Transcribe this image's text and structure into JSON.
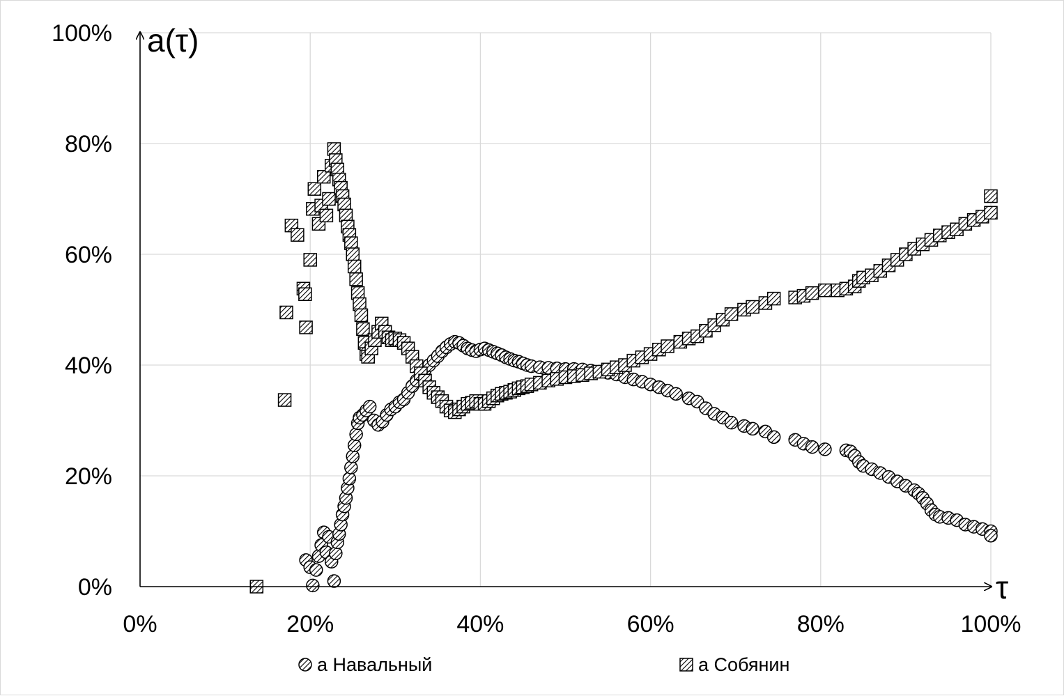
{
  "chart_data": {
    "type": "scatter",
    "title": "",
    "xlabel": "τ",
    "ylabel": "a(τ)",
    "xlim": [
      0,
      1
    ],
    "ylim": [
      0,
      1
    ],
    "x_ticks": [
      "0%",
      "20%",
      "40%",
      "60%",
      "80%",
      "100%"
    ],
    "y_ticks": [
      "0%",
      "20%",
      "40%",
      "60%",
      "80%",
      "100%"
    ],
    "grid": true,
    "legend_position": "bottom",
    "series": [
      {
        "name": "a Навальный",
        "marker": "circle-hatched",
        "points": [
          [
            0.195,
            0.048
          ],
          [
            0.2,
            0.035
          ],
          [
            0.203,
            0.002
          ],
          [
            0.207,
            0.03
          ],
          [
            0.21,
            0.055
          ],
          [
            0.213,
            0.075
          ],
          [
            0.216,
            0.098
          ],
          [
            0.219,
            0.062
          ],
          [
            0.222,
            0.09
          ],
          [
            0.225,
            0.045
          ],
          [
            0.228,
            0.01
          ],
          [
            0.23,
            0.06
          ],
          [
            0.232,
            0.08
          ],
          [
            0.234,
            0.095
          ],
          [
            0.236,
            0.112
          ],
          [
            0.238,
            0.13
          ],
          [
            0.24,
            0.145
          ],
          [
            0.242,
            0.16
          ],
          [
            0.244,
            0.178
          ],
          [
            0.246,
            0.195
          ],
          [
            0.248,
            0.215
          ],
          [
            0.25,
            0.235
          ],
          [
            0.252,
            0.255
          ],
          [
            0.254,
            0.275
          ],
          [
            0.256,
            0.295
          ],
          [
            0.258,
            0.305
          ],
          [
            0.262,
            0.31
          ],
          [
            0.266,
            0.318
          ],
          [
            0.27,
            0.325
          ],
          [
            0.275,
            0.3
          ],
          [
            0.28,
            0.292
          ],
          [
            0.285,
            0.298
          ],
          [
            0.29,
            0.31
          ],
          [
            0.295,
            0.32
          ],
          [
            0.3,
            0.325
          ],
          [
            0.305,
            0.333
          ],
          [
            0.31,
            0.338
          ],
          [
            0.315,
            0.35
          ],
          [
            0.32,
            0.362
          ],
          [
            0.325,
            0.372
          ],
          [
            0.33,
            0.382
          ],
          [
            0.335,
            0.392
          ],
          [
            0.34,
            0.4
          ],
          [
            0.345,
            0.408
          ],
          [
            0.35,
            0.416
          ],
          [
            0.355,
            0.425
          ],
          [
            0.36,
            0.432
          ],
          [
            0.365,
            0.438
          ],
          [
            0.37,
            0.442
          ],
          [
            0.375,
            0.44
          ],
          [
            0.38,
            0.435
          ],
          [
            0.385,
            0.43
          ],
          [
            0.39,
            0.427
          ],
          [
            0.395,
            0.425
          ],
          [
            0.4,
            0.428
          ],
          [
            0.405,
            0.43
          ],
          [
            0.41,
            0.427
          ],
          [
            0.415,
            0.424
          ],
          [
            0.42,
            0.421
          ],
          [
            0.425,
            0.418
          ],
          [
            0.43,
            0.414
          ],
          [
            0.435,
            0.411
          ],
          [
            0.44,
            0.408
          ],
          [
            0.445,
            0.406
          ],
          [
            0.45,
            0.403
          ],
          [
            0.455,
            0.4
          ],
          [
            0.46,
            0.398
          ],
          [
            0.47,
            0.396
          ],
          [
            0.48,
            0.395
          ],
          [
            0.49,
            0.394
          ],
          [
            0.5,
            0.393
          ],
          [
            0.51,
            0.393
          ],
          [
            0.52,
            0.392
          ],
          [
            0.53,
            0.39
          ],
          [
            0.54,
            0.388
          ],
          [
            0.55,
            0.386
          ],
          [
            0.56,
            0.383
          ],
          [
            0.57,
            0.378
          ],
          [
            0.58,
            0.374
          ],
          [
            0.59,
            0.37
          ],
          [
            0.6,
            0.365
          ],
          [
            0.61,
            0.36
          ],
          [
            0.62,
            0.354
          ],
          [
            0.63,
            0.348
          ],
          [
            0.645,
            0.34
          ],
          [
            0.655,
            0.334
          ],
          [
            0.665,
            0.322
          ],
          [
            0.675,
            0.312
          ],
          [
            0.685,
            0.305
          ],
          [
            0.695,
            0.296
          ],
          [
            0.71,
            0.29
          ],
          [
            0.72,
            0.285
          ],
          [
            0.735,
            0.28
          ],
          [
            0.745,
            0.27
          ],
          [
            0.77,
            0.265
          ],
          [
            0.78,
            0.258
          ],
          [
            0.79,
            0.252
          ],
          [
            0.805,
            0.248
          ],
          [
            0.83,
            0.246
          ],
          [
            0.835,
            0.244
          ],
          [
            0.84,
            0.236
          ],
          [
            0.845,
            0.225
          ],
          [
            0.85,
            0.218
          ],
          [
            0.86,
            0.212
          ],
          [
            0.87,
            0.205
          ],
          [
            0.88,
            0.198
          ],
          [
            0.89,
            0.19
          ],
          [
            0.9,
            0.182
          ],
          [
            0.91,
            0.174
          ],
          [
            0.915,
            0.168
          ],
          [
            0.92,
            0.16
          ],
          [
            0.925,
            0.15
          ],
          [
            0.93,
            0.138
          ],
          [
            0.935,
            0.13
          ],
          [
            0.94,
            0.126
          ],
          [
            0.95,
            0.124
          ],
          [
            0.96,
            0.12
          ],
          [
            0.97,
            0.112
          ],
          [
            0.98,
            0.108
          ],
          [
            0.99,
            0.104
          ],
          [
            1.0,
            0.1
          ],
          [
            1.0,
            0.092
          ]
        ]
      },
      {
        "name": "a Собянин",
        "marker": "square-hatched",
        "points": [
          [
            0.137,
            0.0
          ],
          [
            0.17,
            0.337
          ],
          [
            0.172,
            0.495
          ],
          [
            0.178,
            0.652
          ],
          [
            0.185,
            0.635
          ],
          [
            0.192,
            0.538
          ],
          [
            0.194,
            0.528
          ],
          [
            0.195,
            0.468
          ],
          [
            0.2,
            0.59
          ],
          [
            0.203,
            0.682
          ],
          [
            0.205,
            0.718
          ],
          [
            0.21,
            0.655
          ],
          [
            0.213,
            0.688
          ],
          [
            0.216,
            0.74
          ],
          [
            0.219,
            0.67
          ],
          [
            0.222,
            0.7
          ],
          [
            0.225,
            0.76
          ],
          [
            0.228,
            0.79
          ],
          [
            0.23,
            0.77
          ],
          [
            0.232,
            0.753
          ],
          [
            0.234,
            0.735
          ],
          [
            0.236,
            0.72
          ],
          [
            0.238,
            0.705
          ],
          [
            0.24,
            0.69
          ],
          [
            0.242,
            0.67
          ],
          [
            0.244,
            0.65
          ],
          [
            0.246,
            0.635
          ],
          [
            0.248,
            0.62
          ],
          [
            0.25,
            0.6
          ],
          [
            0.252,
            0.578
          ],
          [
            0.254,
            0.555
          ],
          [
            0.256,
            0.53
          ],
          [
            0.258,
            0.51
          ],
          [
            0.26,
            0.49
          ],
          [
            0.262,
            0.465
          ],
          [
            0.264,
            0.44
          ],
          [
            0.266,
            0.42
          ],
          [
            0.268,
            0.415
          ],
          [
            0.272,
            0.43
          ],
          [
            0.276,
            0.445
          ],
          [
            0.28,
            0.46
          ],
          [
            0.284,
            0.475
          ],
          [
            0.288,
            0.46
          ],
          [
            0.292,
            0.45
          ],
          [
            0.296,
            0.445
          ],
          [
            0.3,
            0.448
          ],
          [
            0.305,
            0.445
          ],
          [
            0.31,
            0.44
          ],
          [
            0.315,
            0.43
          ],
          [
            0.32,
            0.415
          ],
          [
            0.325,
            0.398
          ],
          [
            0.33,
            0.385
          ],
          [
            0.335,
            0.372
          ],
          [
            0.34,
            0.36
          ],
          [
            0.345,
            0.35
          ],
          [
            0.35,
            0.342
          ],
          [
            0.355,
            0.335
          ],
          [
            0.36,
            0.325
          ],
          [
            0.365,
            0.318
          ],
          [
            0.37,
            0.315
          ],
          [
            0.375,
            0.32
          ],
          [
            0.38,
            0.325
          ],
          [
            0.385,
            0.33
          ],
          [
            0.39,
            0.332
          ],
          [
            0.395,
            0.335
          ],
          [
            0.4,
            0.33
          ],
          [
            0.405,
            0.33
          ],
          [
            0.41,
            0.335
          ],
          [
            0.415,
            0.34
          ],
          [
            0.42,
            0.345
          ],
          [
            0.425,
            0.348
          ],
          [
            0.43,
            0.35
          ],
          [
            0.435,
            0.352
          ],
          [
            0.44,
            0.355
          ],
          [
            0.445,
            0.358
          ],
          [
            0.45,
            0.36
          ],
          [
            0.455,
            0.362
          ],
          [
            0.46,
            0.365
          ],
          [
            0.47,
            0.368
          ],
          [
            0.48,
            0.372
          ],
          [
            0.49,
            0.375
          ],
          [
            0.5,
            0.378
          ],
          [
            0.51,
            0.38
          ],
          [
            0.52,
            0.382
          ],
          [
            0.53,
            0.385
          ],
          [
            0.54,
            0.388
          ],
          [
            0.55,
            0.392
          ],
          [
            0.56,
            0.396
          ],
          [
            0.57,
            0.4
          ],
          [
            0.58,
            0.408
          ],
          [
            0.59,
            0.414
          ],
          [
            0.6,
            0.42
          ],
          [
            0.61,
            0.428
          ],
          [
            0.62,
            0.434
          ],
          [
            0.635,
            0.442
          ],
          [
            0.645,
            0.448
          ],
          [
            0.655,
            0.452
          ],
          [
            0.665,
            0.462
          ],
          [
            0.675,
            0.472
          ],
          [
            0.685,
            0.482
          ],
          [
            0.695,
            0.492
          ],
          [
            0.71,
            0.5
          ],
          [
            0.72,
            0.505
          ],
          [
            0.735,
            0.512
          ],
          [
            0.745,
            0.52
          ],
          [
            0.77,
            0.522
          ],
          [
            0.78,
            0.525
          ],
          [
            0.79,
            0.53
          ],
          [
            0.805,
            0.535
          ],
          [
            0.82,
            0.535
          ],
          [
            0.83,
            0.538
          ],
          [
            0.84,
            0.542
          ],
          [
            0.845,
            0.552
          ],
          [
            0.85,
            0.558
          ],
          [
            0.86,
            0.562
          ],
          [
            0.87,
            0.57
          ],
          [
            0.88,
            0.58
          ],
          [
            0.89,
            0.59
          ],
          [
            0.9,
            0.6
          ],
          [
            0.91,
            0.61
          ],
          [
            0.92,
            0.618
          ],
          [
            0.93,
            0.626
          ],
          [
            0.94,
            0.634
          ],
          [
            0.95,
            0.64
          ],
          [
            0.96,
            0.645
          ],
          [
            0.97,
            0.655
          ],
          [
            0.98,
            0.662
          ],
          [
            0.99,
            0.668
          ],
          [
            1.0,
            0.675
          ],
          [
            1.0,
            0.705
          ]
        ]
      }
    ]
  }
}
